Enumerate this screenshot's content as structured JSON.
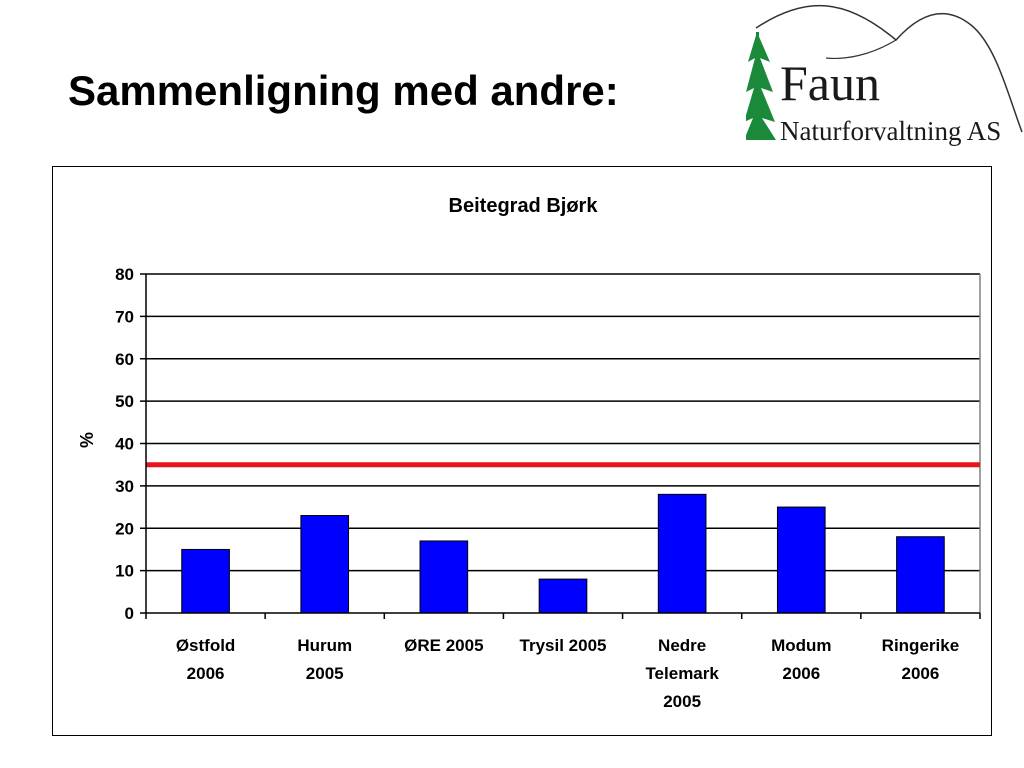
{
  "slide": {
    "title": "Sammenligning med andre:"
  },
  "logo": {
    "name": "Faun",
    "subtitle": "Naturforvaltning AS",
    "colors": {
      "tree": "#1a8a3a",
      "text": "#1a1a1a",
      "hill": "#333333"
    }
  },
  "chart_data": {
    "type": "bar",
    "title": "Beitegrad Bjørk",
    "ylabel": "%",
    "xlabel": "",
    "ylim": [
      0,
      80
    ],
    "yticks": [
      0,
      10,
      20,
      30,
      40,
      50,
      60,
      70,
      80
    ],
    "grid": true,
    "legend": "none",
    "categories": [
      [
        "Østfold",
        "2006"
      ],
      [
        "Hurum",
        "2005"
      ],
      [
        "ØRE 2005"
      ],
      [
        "Trysil 2005"
      ],
      [
        "Nedre",
        "Telemark",
        "2005"
      ],
      [
        "Modum",
        "2006"
      ],
      [
        "Ringerike",
        "2006"
      ]
    ],
    "values": [
      15,
      23,
      17,
      8,
      28,
      25,
      18
    ],
    "reference_line": {
      "value": 35,
      "color": "#e8141b"
    },
    "colors": {
      "bar": "#0000ff",
      "bar_edge": "#000000",
      "grid": "#000000"
    }
  }
}
